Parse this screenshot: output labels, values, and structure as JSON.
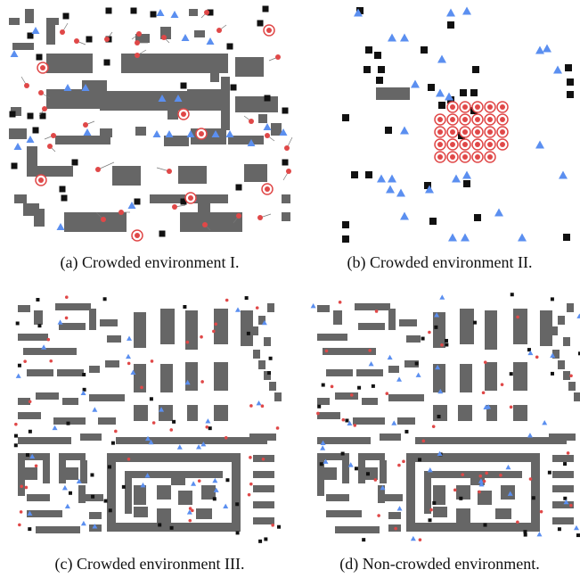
{
  "figure": {
    "panels": [
      {
        "id": "a",
        "caption": "(a) Crowded environment I."
      },
      {
        "id": "b",
        "caption": "(b) Crowded environment II."
      },
      {
        "id": "c",
        "caption": "(c) Crowded environment III."
      },
      {
        "id": "d",
        "caption": "(d) Non-crowded environment."
      }
    ]
  },
  "legend_colors": {
    "obstacle": "#666666",
    "small_obstacle": "#111111",
    "robot_triangle": "#5b8ff0",
    "agent_circle": "#e04848",
    "goal_line": "#777777"
  }
}
